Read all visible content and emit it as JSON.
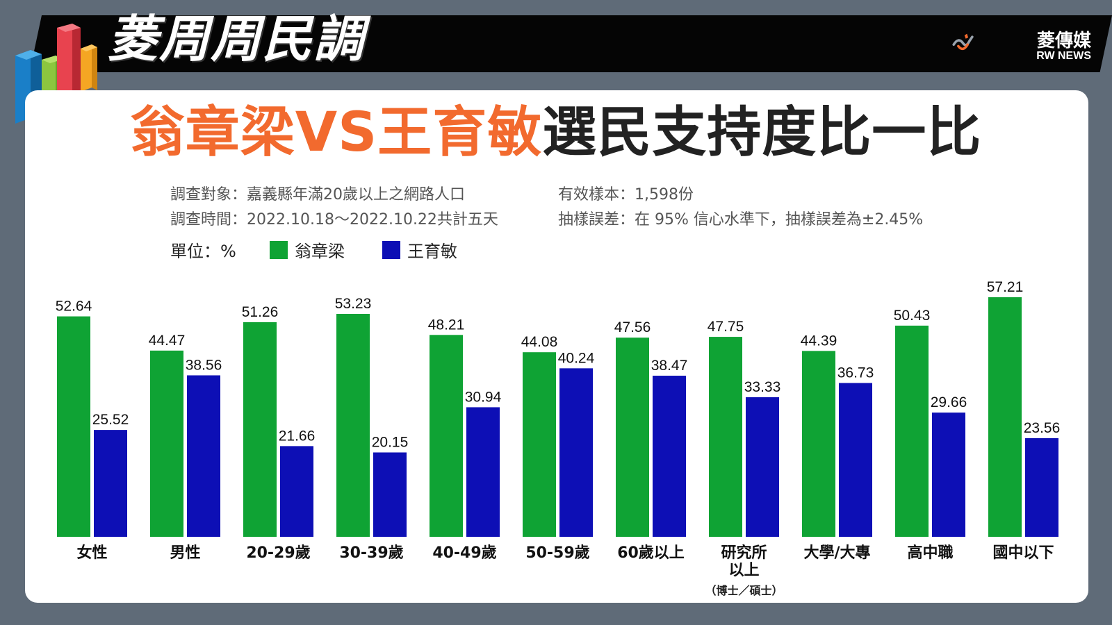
{
  "header": {
    "title": "菱周周民調",
    "brand_name": "菱傳媒",
    "brand_sub": "RW NEWS"
  },
  "main_title": {
    "orange": "翁章梁VS王育敏",
    "black": "選民支持度比一比"
  },
  "meta": {
    "target": "調查對象：嘉義縣年滿20歲以上之網路人口",
    "sample": "有效樣本：1,598份",
    "period": "調查時間：2022.10.18～2022.10.22共計五天",
    "error": "抽樣誤差：在 95% 信心水準下，抽樣誤差為±2.45%"
  },
  "legend": {
    "unit": "單位：%",
    "series1": "翁章梁",
    "series2": "王育敏"
  },
  "colors": {
    "green": "#0fa334",
    "blue": "#0d0fb5",
    "orange": "#f26a2e"
  },
  "chart_data": {
    "type": "bar",
    "unit": "%",
    "categories": [
      "女性",
      "男性",
      "20-29歲",
      "30-39歲",
      "40-49歲",
      "50-59歲",
      "60歲以上",
      "研究所以上（博士／碩士）",
      "大學/大專",
      "高中職",
      "國中以下"
    ],
    "category_lines": [
      [
        "女性"
      ],
      [
        "男性"
      ],
      [
        "20-29歲"
      ],
      [
        "30-39歲"
      ],
      [
        "40-49歲"
      ],
      [
        "50-59歲"
      ],
      [
        "60歲以上"
      ],
      [
        "研究所",
        "以上"
      ],
      [
        "大學/大專"
      ],
      [
        "高中職"
      ],
      [
        "國中以下"
      ]
    ],
    "category_sub": [
      "",
      "",
      "",
      "",
      "",
      "",
      "",
      "（博士／碩士）",
      "",
      "",
      ""
    ],
    "series": [
      {
        "name": "翁章梁",
        "color": "#0fa334",
        "values": [
          52.64,
          44.47,
          51.26,
          53.23,
          48.21,
          44.08,
          47.56,
          47.75,
          44.39,
          50.43,
          57.21
        ]
      },
      {
        "name": "王育敏",
        "color": "#0d0fb5",
        "values": [
          25.52,
          38.56,
          21.66,
          20.15,
          30.94,
          40.24,
          38.47,
          33.33,
          36.73,
          29.66,
          23.56
        ]
      }
    ],
    "labels": [
      [
        "52.64",
        "44.47",
        "51.26",
        "53.23",
        "48.21",
        "44.08",
        "47.56",
        "47.75",
        "44.39",
        "50.43",
        "57.21"
      ],
      [
        "25.52",
        "38.56",
        "21.66",
        "20.15",
        "30.94",
        "40.24",
        "38.47",
        "33.33",
        "36.73",
        "29.66",
        "23.56"
      ]
    ],
    "legend_position": "top-left",
    "grid": false
  }
}
